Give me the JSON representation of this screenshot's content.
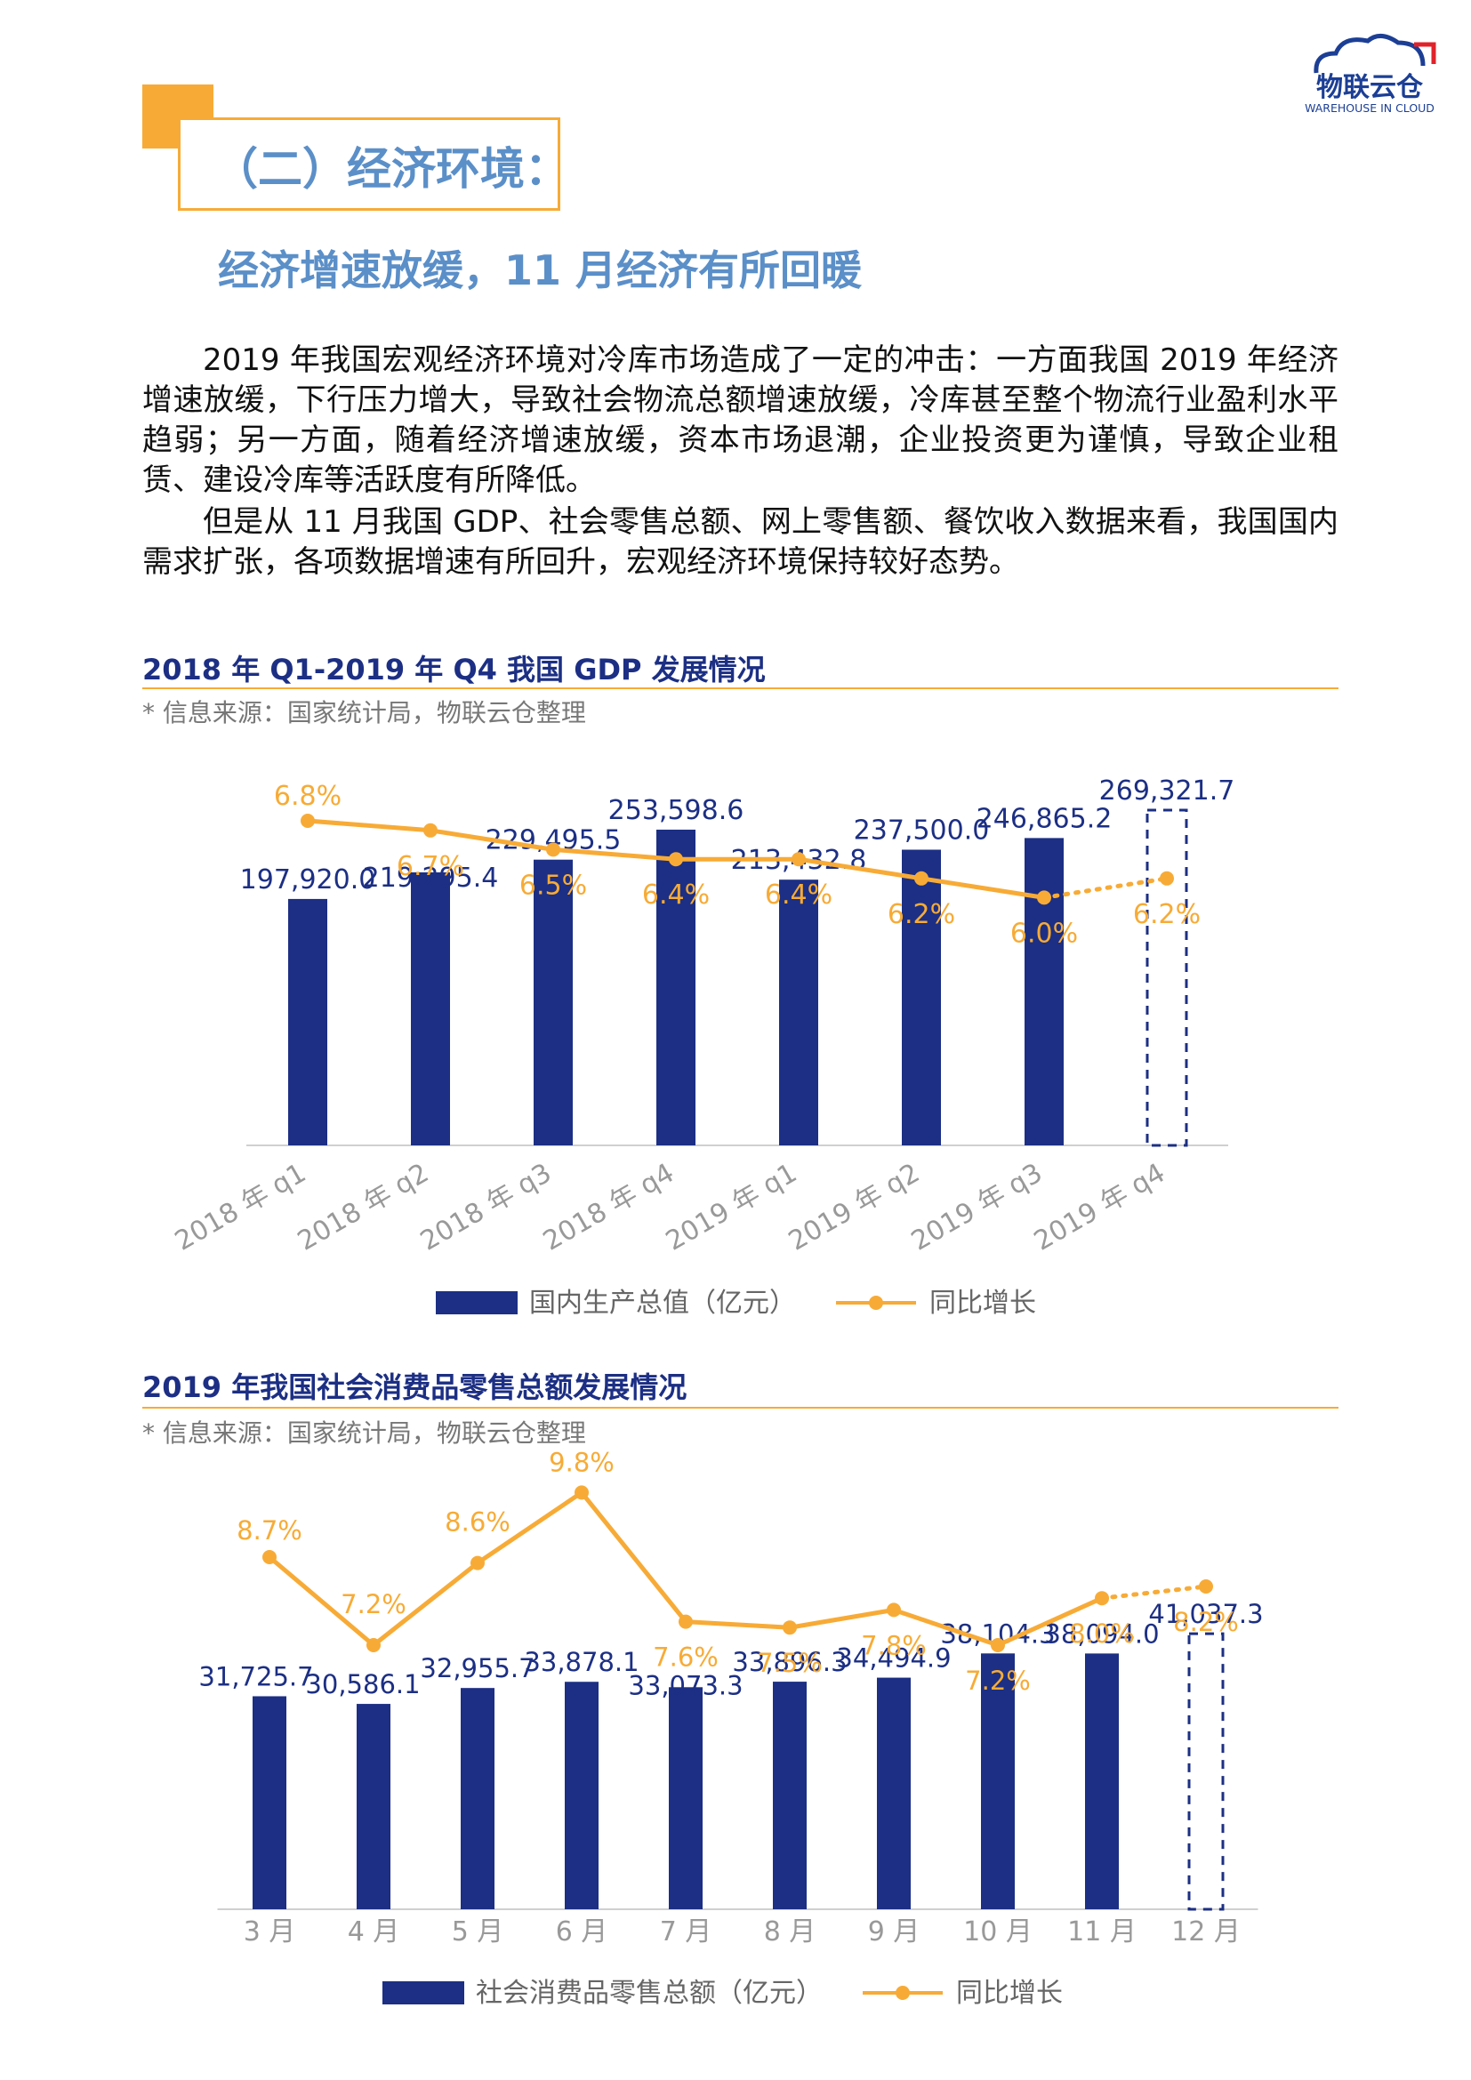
{
  "logo": {
    "name": "物联云仓",
    "tagline": "WAREHOUSE IN CLOUD"
  },
  "section": {
    "title": "（二）经济环境：",
    "subtitle": "经济增速放缓，11 月经济有所回暖"
  },
  "paragraphs": [
    "2019 年我国宏观经济环境对冷库市场造成了一定的冲击：一方面我国 2019 年经济增速放缓，下行压力增大，导致社会物流总额增速放缓，冷库甚至整个物流行业盈利水平趋弱；另一方面，随着经济增速放缓，资本市场退潮，企业投资更为谨慎，导致企业租赁、建设冷库等活跃度有所降低。",
    "但是从 11 月我国 GDP、社会零售总额、网上零售额、餐饮收入数据来看，我国国内需求扩张，各项数据增速有所回升，宏观经济环境保持较好态势。"
  ],
  "colors": {
    "bar": "#1c2f84",
    "line": "#f7ab36",
    "label_blue": "#1c2f84",
    "axis_text": "#999999"
  },
  "chart_data": [
    {
      "type": "bar",
      "title": "2018 年 Q1-2019 年 Q4 我国 GDP 发展情况",
      "source": "* 信息来源：国家统计局，物联云仓整理",
      "categories": [
        "2018 年 q1",
        "2018 年 q2",
        "2018 年 q3",
        "2018 年 q4",
        "2019 年 q1",
        "2019 年 q2",
        "2019 年 q3",
        "2019 年 q4"
      ],
      "bar_label_text": [
        "197,920.0",
        "219,295.4",
        "229,495.5",
        "253,598.6",
        "213,432.8",
        "237,500.0",
        "246,865.2",
        "269,321.7"
      ],
      "line_label_text": [
        "6.8%",
        "6.7%",
        "6.5%",
        "6.4%",
        "6.4%",
        "6.2%",
        "6.0%",
        "6.2%"
      ],
      "series": [
        {
          "name": "国内生产总值（亿元）",
          "values": [
            197920.0,
            219295.4,
            229495.5,
            253598.6,
            213432.8,
            237500.0,
            246865.2,
            269321.7
          ],
          "projected_last": true
        },
        {
          "name": "同比增长",
          "values": [
            6.8,
            6.7,
            6.5,
            6.4,
            6.4,
            6.2,
            6.0,
            6.2
          ],
          "projected_last": true
        }
      ],
      "legend": [
        "国内生产总值（亿元）",
        "同比增长"
      ]
    },
    {
      "type": "bar",
      "title": "2019 年我国社会消费品零售总额发展情况",
      "source": "* 信息来源：国家统计局，物联云仓整理",
      "categories": [
        "3 月",
        "4 月",
        "5 月",
        "6 月",
        "7 月",
        "8 月",
        "9 月",
        "10 月",
        "11 月",
        "12 月"
      ],
      "bar_label_text": [
        "31,725.7",
        "30,586.1",
        "32,955.7",
        "33,878.1",
        "33,073.3",
        "33,896.3",
        "34,494.9",
        "38,104.3",
        "38,094.0",
        "41,037.3"
      ],
      "line_label_text": [
        "8.7%",
        "7.2%",
        "8.6%",
        "9.8%",
        "7.6%",
        "7.5%",
        "7.8%",
        "7.2%",
        "8.0%",
        "8.2%"
      ],
      "series": [
        {
          "name": "社会消费品零售总额（亿元）",
          "values": [
            31725.7,
            30586.1,
            32955.7,
            33878.1,
            33073.3,
            33896.3,
            34494.9,
            38104.3,
            38094.0,
            41037.3
          ],
          "projected_last": true
        },
        {
          "name": "同比增长",
          "values": [
            8.7,
            7.2,
            8.6,
            9.8,
            7.6,
            7.5,
            7.8,
            7.2,
            8.0,
            8.2
          ],
          "projected_last": true
        }
      ],
      "legend": [
        "社会消费品零售总额（亿元）",
        "同比增长"
      ]
    }
  ]
}
